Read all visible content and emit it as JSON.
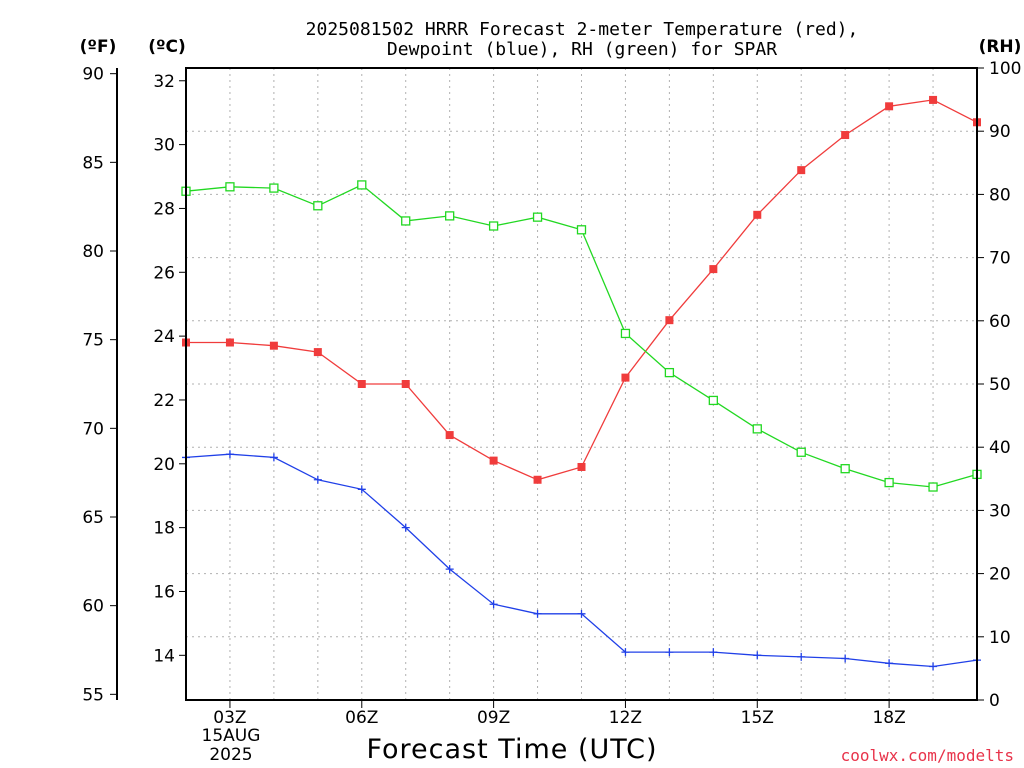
{
  "title_line1": "2025081502 HRRR Forecast 2-meter Temperature (red),",
  "title_line2": "Dewpoint (blue), RH (green) for SPAR",
  "unit_left_f": "(ºF)",
  "unit_left_c": "(ºC)",
  "unit_right": "(RH)",
  "date_line1": "15AUG",
  "date_line2": "2025",
  "credit": "coolwx.com/modelts",
  "colors": {
    "temperature": "#f03c3c",
    "dewpoint": "#2040e8",
    "rh": "#22d822"
  },
  "chart_data": {
    "type": "line",
    "title": "2025081502 HRRR Forecast 2-meter Temperature (red), Dewpoint (blue), RH (green) for SPAR",
    "xlabel": "Forecast Time (UTC)",
    "x": [
      2,
      3,
      4,
      5,
      6,
      7,
      8,
      9,
      10,
      11,
      12,
      13,
      14,
      15,
      16,
      17,
      18,
      19,
      20
    ],
    "xlim": [
      2,
      20
    ],
    "x_ticks": [
      {
        "value": 3,
        "label": "03Z"
      },
      {
        "value": 6,
        "label": "06Z"
      },
      {
        "value": 9,
        "label": "09Z"
      },
      {
        "value": 12,
        "label": "12Z"
      },
      {
        "value": 15,
        "label": "15Z"
      },
      {
        "value": 18,
        "label": "18Z"
      }
    ],
    "y_left_c": {
      "lim": [
        12.6,
        32.4
      ],
      "ticks": [
        14,
        16,
        18,
        20,
        22,
        24,
        26,
        28,
        30,
        32
      ]
    },
    "y_left_f": {
      "ticks": [
        55,
        60,
        65,
        70,
        75,
        80,
        85,
        90
      ]
    },
    "y_right_rh": {
      "lim": [
        0,
        100
      ],
      "ticks": [
        0,
        10,
        20,
        30,
        40,
        50,
        60,
        70,
        80,
        90,
        100
      ]
    },
    "grid": true,
    "series": [
      {
        "name": "Temperature",
        "axis": "celsius",
        "marker": "filled-square",
        "color": "#f03c3c",
        "values": [
          23.8,
          23.8,
          23.7,
          23.5,
          22.5,
          22.5,
          20.9,
          20.1,
          19.5,
          19.9,
          22.7,
          24.5,
          26.1,
          27.8,
          29.2,
          30.3,
          31.2,
          31.4,
          30.7
        ]
      },
      {
        "name": "Dewpoint",
        "axis": "celsius",
        "marker": "plus",
        "color": "#2040e8",
        "values": [
          20.2,
          20.3,
          20.2,
          19.5,
          19.2,
          18.0,
          16.7,
          15.6,
          15.3,
          15.3,
          14.1,
          14.1,
          14.1,
          14.0,
          13.95,
          13.9,
          13.75,
          13.65,
          13.85
        ]
      },
      {
        "name": "RH",
        "axis": "rh",
        "marker": "open-square",
        "color": "#22d822",
        "values": [
          80.5,
          81.2,
          81.0,
          78.2,
          81.5,
          75.8,
          76.6,
          75.0,
          76.4,
          74.4,
          58.0,
          51.8,
          47.4,
          42.9,
          39.2,
          36.6,
          34.4,
          33.7,
          35.7
        ]
      }
    ]
  }
}
